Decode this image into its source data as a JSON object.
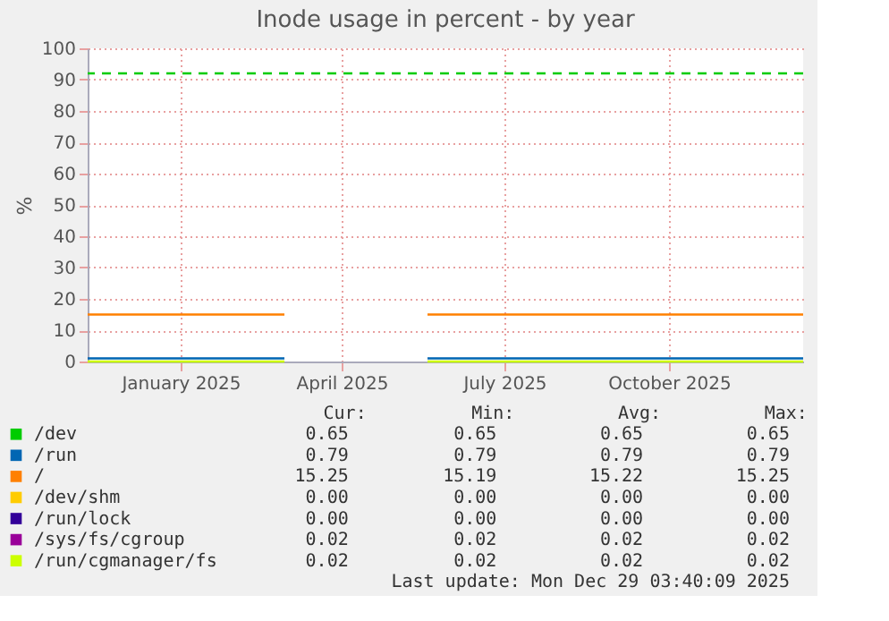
{
  "chart_data": {
    "type": "line",
    "title": "Inode usage in percent - by year",
    "ylabel": "%",
    "x": [
      "2024-11-24",
      "2025-03-14",
      "2025-03-15",
      "2025-06-02",
      "2025-12-29"
    ],
    "xlim": [
      "2024-11-24",
      "2025-12-29"
    ],
    "xticks": [
      {
        "value": "2025-01-15",
        "label": "January 2025"
      },
      {
        "value": "2025-04-15",
        "label": "April 2025"
      },
      {
        "value": "2025-07-15",
        "label": "July 2025"
      },
      {
        "value": "2025-10-15",
        "label": "October 2025"
      }
    ],
    "ylim": [
      0,
      100
    ],
    "yticks": [
      0,
      10,
      20,
      30,
      40,
      50,
      60,
      70,
      80,
      90,
      100
    ],
    "grid": true,
    "legend": "bottom",
    "marker": "none",
    "line_style": "solid",
    "series": [
      {
        "name": "/dev",
        "color": "#00cc00",
        "values": [
          null,
          null,
          null,
          null,
          null
        ]
      },
      {
        "name": "/run",
        "color": "#0066b3",
        "values": [
          1,
          1,
          null,
          1,
          1
        ]
      },
      {
        "name": "/",
        "color": "#ff8000",
        "values": [
          15,
          15,
          null,
          15,
          15
        ]
      },
      {
        "name": "/dev/shm",
        "color": "#ffcc00",
        "values": [
          null,
          null,
          null,
          null,
          null
        ]
      },
      {
        "name": "/run/lock",
        "color": "#330099",
        "values": [
          null,
          null,
          null,
          null,
          null
        ]
      },
      {
        "name": "/sys/fs/cgroup",
        "color": "#990099",
        "values": [
          null,
          null,
          null,
          null,
          null
        ]
      },
      {
        "name": "/run/cgmanager/fs",
        "color": "#ccff00",
        "values": [
          0,
          0,
          null,
          0,
          0
        ]
      }
    ],
    "ref_lines": [
      {
        "axis": "y",
        "value": 92,
        "color": "#00cc00",
        "line_style": "dashed"
      }
    ],
    "annotations": [
      "Cur:",
      "Min:",
      "Avg:",
      "Max:",
      "0.65",
      "0.65",
      "0.65",
      "0.65",
      "0.79",
      "0.79",
      "0.79",
      "0.79",
      "15.25",
      "15.19",
      "15.22",
      "15.25",
      "0.00",
      "0.00",
      "0.00",
      "0.00",
      "0.00",
      "0.00",
      "0.00",
      "0.00",
      "0.02",
      "0.02",
      "0.02",
      "0.02",
      "0.02",
      "0.02",
      "0.02",
      "0.02",
      "Last update: Mon Dec 29 03:40:09 2025"
    ]
  }
}
